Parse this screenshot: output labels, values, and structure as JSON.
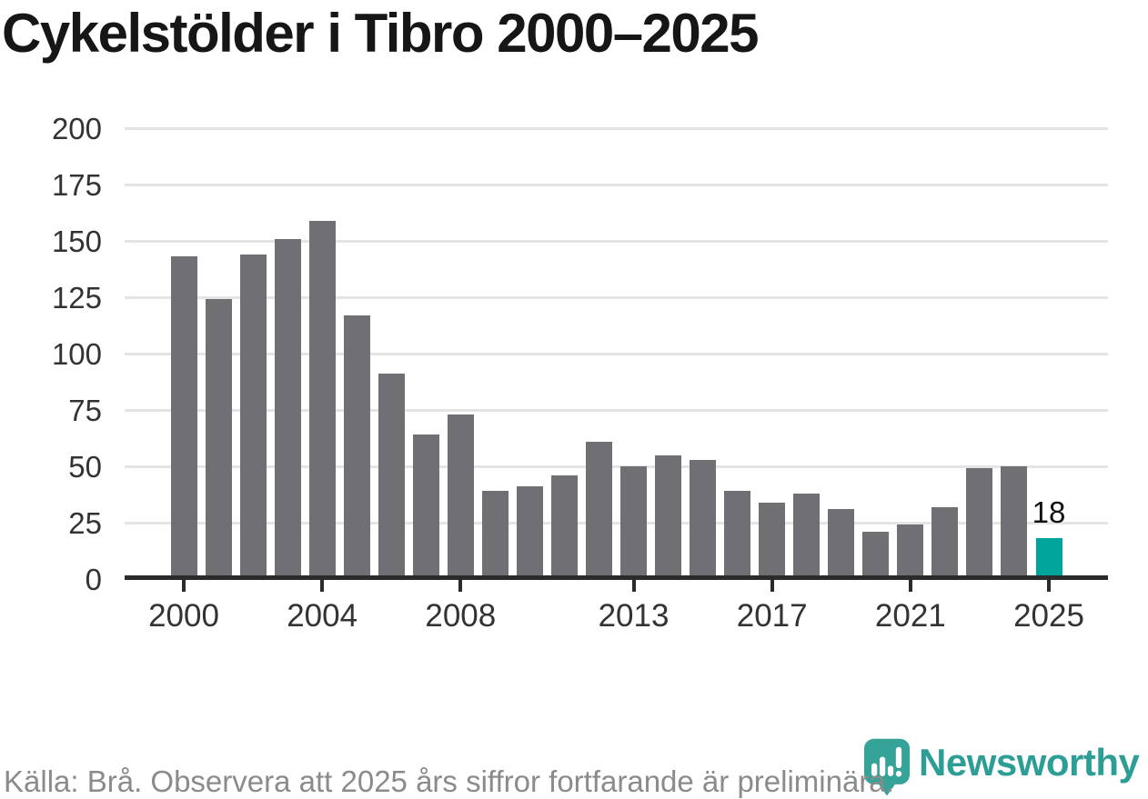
{
  "title": "Cykelstölder i Tibro 2000–2025",
  "chart_data": {
    "type": "bar",
    "title": "Cykelstölder i Tibro 2000–2025",
    "categories": [
      2000,
      2001,
      2002,
      2003,
      2004,
      2005,
      2006,
      2007,
      2008,
      2009,
      2010,
      2011,
      2012,
      2013,
      2014,
      2015,
      2016,
      2017,
      2018,
      2019,
      2020,
      2021,
      2022,
      2023,
      2024,
      2025
    ],
    "values": [
      143,
      124,
      144,
      151,
      159,
      117,
      91,
      64,
      73,
      39,
      41,
      46,
      61,
      50,
      55,
      53,
      39,
      34,
      38,
      31,
      21,
      24,
      32,
      49,
      50,
      18
    ],
    "xlabel": "",
    "ylabel": "",
    "ylim": [
      0,
      200
    ],
    "y_ticks": [
      0,
      25,
      50,
      75,
      100,
      125,
      150,
      175,
      200
    ],
    "x_tick_years": [
      2000,
      2004,
      2008,
      2013,
      2017,
      2021,
      2025
    ],
    "grid": true,
    "legend_position": "none",
    "bar_color": "#6f6f74",
    "highlight_year": 2025,
    "highlight_color": "#00a49b",
    "annotation": {
      "year": 2025,
      "text": "18"
    }
  },
  "footer": {
    "source_note": "Källa: Brå. Observera att 2025 års siffror fortfarande är preliminära.",
    "brand": "Newsworthy",
    "brand_color": "#2d9e96",
    "logo_color": "#35a398"
  }
}
